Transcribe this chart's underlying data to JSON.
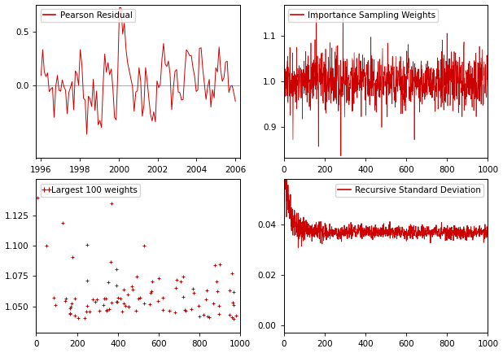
{
  "color": "#cc0000",
  "line_width": 0.7,
  "marker_size": 3.5,
  "bg_color": "#ffffff",
  "plot1_title": "Pearson Residual",
  "plot1_xlim": [
    1995.75,
    2006.25
  ],
  "plot1_ylim": [
    -0.68,
    0.75
  ],
  "plot1_yticks": [
    0.0,
    0.5
  ],
  "plot1_xticks": [
    1996,
    1998,
    2000,
    2002,
    2004,
    2006
  ],
  "plot1_hline": 0.0,
  "plot1_hline_color": "#aaaaaa",
  "plot2_title": "Importance Sampling Weights",
  "plot2_xlim": [
    0,
    1000
  ],
  "plot2_ylim": [
    0.83,
    1.17
  ],
  "plot2_yticks": [
    0.9,
    1.0,
    1.1
  ],
  "plot2_xticks": [
    0,
    200,
    400,
    600,
    800,
    1000
  ],
  "plot3_title": "Largest 100 weights",
  "plot3_xlim": [
    0,
    1000
  ],
  "plot3_ylim": [
    1.028,
    1.155
  ],
  "plot3_yticks": [
    1.05,
    1.075,
    1.1,
    1.125
  ],
  "plot3_xticks": [
    0,
    200,
    400,
    600,
    800,
    1000
  ],
  "plot4_title": "Recursive Standard Deviation",
  "plot4_xlim": [
    0,
    1000
  ],
  "plot4_ylim": [
    -0.003,
    0.058
  ],
  "plot4_yticks": [
    0.0,
    0.02,
    0.04
  ],
  "plot4_xticks": [
    0,
    200,
    400,
    600,
    800,
    1000
  ],
  "legend_fontsize": 7.5,
  "tick_fontsize": 7.5,
  "title_fontsize": 8
}
